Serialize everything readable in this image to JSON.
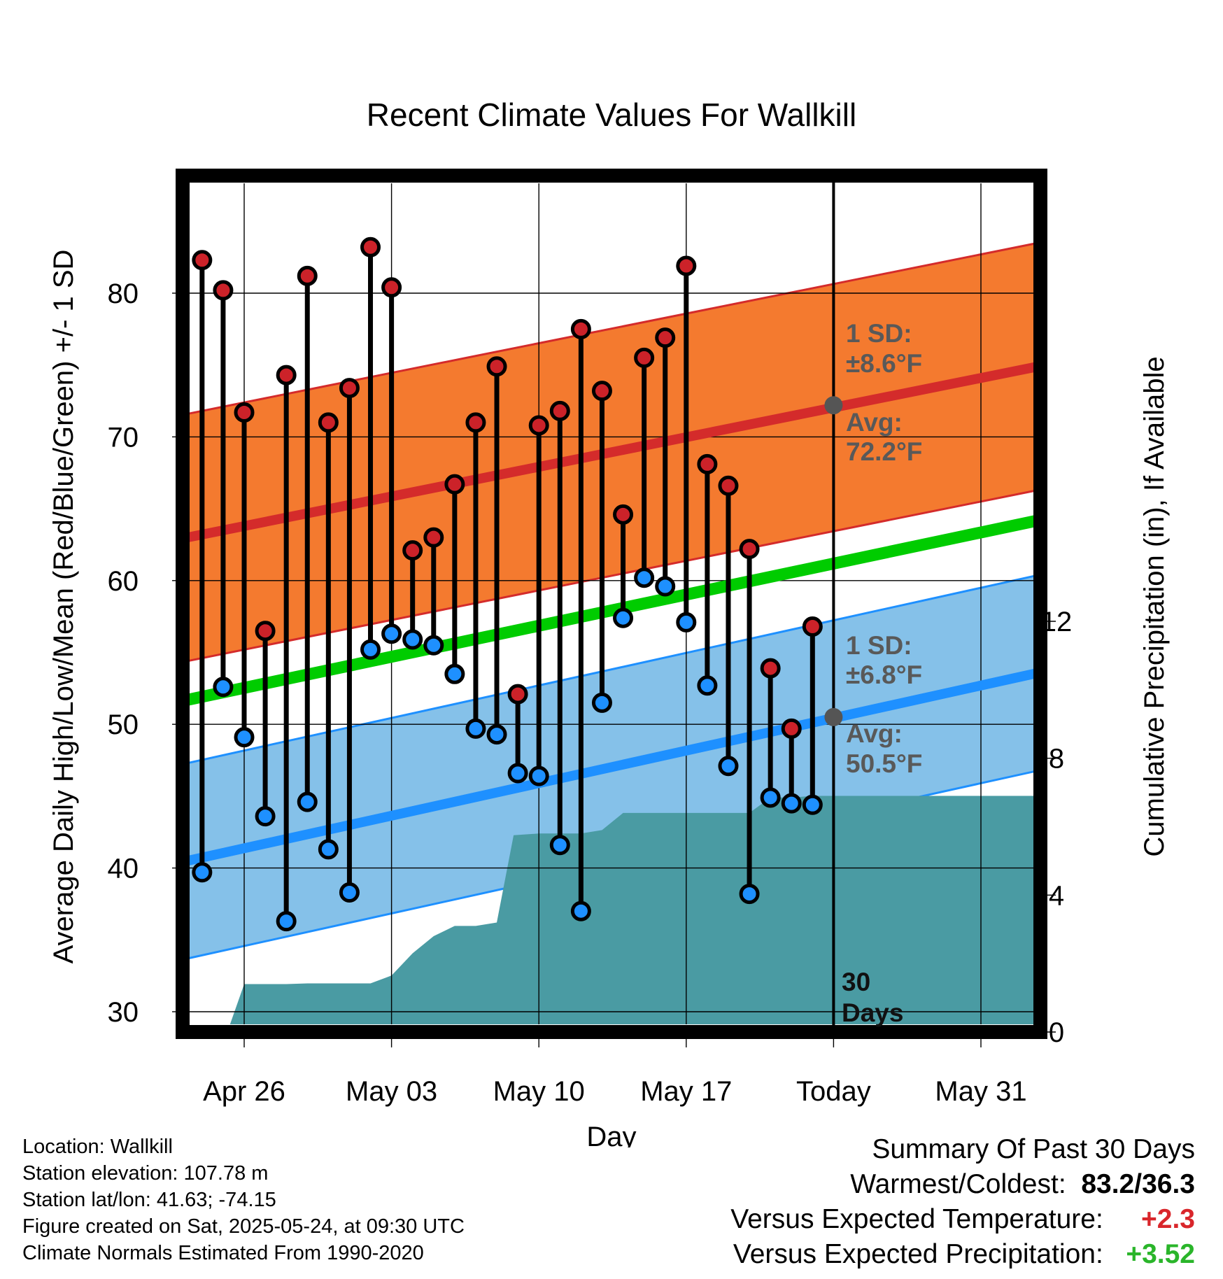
{
  "figure": {
    "title": "Recent Climate Values For Wallkill",
    "xlabel": "Day",
    "ylabel_left": "Average Daily High/Low/Mean (Red/Blue/Green) +/- 1 SD",
    "ylabel_right": "Cumulative Precipitation (in), If Available",
    "days_label": [
      "30",
      "Days"
    ],
    "high_sd_label": [
      "1 SD:",
      "±8.6°F"
    ],
    "high_avg_label": [
      "Avg:",
      "72.2°F"
    ],
    "low_sd_label": [
      "1 SD:",
      "±6.8°F"
    ],
    "low_avg_label": [
      "Avg:",
      "50.5°F"
    ]
  },
  "footer": {
    "location": "Location: Wallkill",
    "elevation": "Station elevation: 107.78 m",
    "latlon": "Station lat/lon: 41.63; -74.15",
    "created": "Figure created on Sat, 2025-05-24, at 09:30 UTC",
    "normals": "Climate Normals Estimated From 1990-2020"
  },
  "summary": {
    "heading": "Summary Of Past 30 Days",
    "warm_cold_label": "Warmest/Coldest:",
    "warm_cold_value": "83.2/36.3",
    "temp_label": "Versus Expected Temperature:",
    "temp_value": "+2.3",
    "precip_label": "Versus Expected Precipitation:",
    "precip_value": "+3.52"
  },
  "colors": {
    "high_dot": "#cc2229",
    "low_dot": "#1e90ff",
    "high_band": "#f47a2f",
    "high_mean": "#d42b2b",
    "low_band": "#85c1e9",
    "low_mean": "#1e90ff",
    "mean_line": "#00cc00",
    "precip": "#4a9ba3",
    "annotation": "#595959",
    "summary_red": "#d9262b",
    "summary_green": "#2ab52a"
  },
  "chart_data": {
    "type": "line",
    "title": "Recent Climate Values For Wallkill",
    "xlabel": "Day",
    "ylabel": "Average Daily High/Low/Mean (Red/Blue/Green) +/- 1 SD",
    "y2label": "Cumulative Precipitation (in), If Available",
    "ylim": [
      28.6,
      88
    ],
    "y_ticks": [
      30,
      40,
      50,
      60,
      70,
      80
    ],
    "y2lim": [
      0,
      25.1
    ],
    "y2_ticks": [
      0,
      4,
      8,
      12
    ],
    "xlim": [
      -3.1,
      38.4
    ],
    "x_ticks": [
      {
        "day": 0,
        "label": "Apr 26"
      },
      {
        "day": 7,
        "label": "May 03"
      },
      {
        "day": 14,
        "label": "May 10"
      },
      {
        "day": 21,
        "label": "May 17"
      },
      {
        "day": 28,
        "label": "Today"
      },
      {
        "day": 35,
        "label": "May 31"
      }
    ],
    "today_day": 28,
    "highs": [
      {
        "day": -2,
        "value": 82.3
      },
      {
        "day": -1,
        "value": 80.2
      },
      {
        "day": 0,
        "value": 71.7
      },
      {
        "day": 1,
        "value": 56.5
      },
      {
        "day": 2,
        "value": 74.3
      },
      {
        "day": 3,
        "value": 81.2
      },
      {
        "day": 4,
        "value": 71.0
      },
      {
        "day": 5,
        "value": 73.4
      },
      {
        "day": 6,
        "value": 83.2
      },
      {
        "day": 7,
        "value": 80.4
      },
      {
        "day": 8,
        "value": 62.1
      },
      {
        "day": 9,
        "value": 63.0
      },
      {
        "day": 10,
        "value": 66.7
      },
      {
        "day": 11,
        "value": 71.0
      },
      {
        "day": 12,
        "value": 74.9
      },
      {
        "day": 13,
        "value": 52.1
      },
      {
        "day": 14,
        "value": 70.8
      },
      {
        "day": 15,
        "value": 71.8
      },
      {
        "day": 16,
        "value": 77.5
      },
      {
        "day": 17,
        "value": 73.2
      },
      {
        "day": 18,
        "value": 64.6
      },
      {
        "day": 19,
        "value": 75.5
      },
      {
        "day": 20,
        "value": 76.9
      },
      {
        "day": 21,
        "value": 81.9
      },
      {
        "day": 22,
        "value": 68.1
      },
      {
        "day": 23,
        "value": 66.6
      },
      {
        "day": 24,
        "value": 62.2
      },
      {
        "day": 25,
        "value": 53.9
      },
      {
        "day": 26,
        "value": 49.7
      },
      {
        "day": 27,
        "value": 56.8
      }
    ],
    "lows": [
      {
        "day": -2,
        "value": 39.7
      },
      {
        "day": -1,
        "value": 52.6
      },
      {
        "day": 0,
        "value": 49.1
      },
      {
        "day": 1,
        "value": 43.6
      },
      {
        "day": 2,
        "value": 36.3
      },
      {
        "day": 3,
        "value": 44.6
      },
      {
        "day": 4,
        "value": 41.3
      },
      {
        "day": 5,
        "value": 38.3
      },
      {
        "day": 6,
        "value": 55.2
      },
      {
        "day": 7,
        "value": 56.3
      },
      {
        "day": 8,
        "value": 55.9
      },
      {
        "day": 9,
        "value": 55.5
      },
      {
        "day": 10,
        "value": 53.5
      },
      {
        "day": 11,
        "value": 49.7
      },
      {
        "day": 12,
        "value": 49.3
      },
      {
        "day": 13,
        "value": 46.6
      },
      {
        "day": 14,
        "value": 46.4
      },
      {
        "day": 15,
        "value": 41.6
      },
      {
        "day": 16,
        "value": 37.0
      },
      {
        "day": 17,
        "value": 51.5
      },
      {
        "day": 18,
        "value": 57.4
      },
      {
        "day": 19,
        "value": 60.2
      },
      {
        "day": 20,
        "value": 59.6
      },
      {
        "day": 21,
        "value": 57.1
      },
      {
        "day": 22,
        "value": 52.7
      },
      {
        "day": 23,
        "value": 47.1
      },
      {
        "day": 24,
        "value": 38.2
      },
      {
        "day": 25,
        "value": 44.9
      },
      {
        "day": 26,
        "value": 44.5
      },
      {
        "day": 27,
        "value": 44.4
      }
    ],
    "normal_high": {
      "day": [
        -2.7,
        38.4
      ],
      "value": [
        63.0,
        75.1
      ],
      "sd": 8.6
    },
    "normal_low": {
      "day": [
        -2.7,
        38.4
      ],
      "value": [
        40.5,
        53.8
      ],
      "sd": 6.8
    },
    "normal_mean": {
      "day": [
        -2.7,
        38.4
      ],
      "value": [
        51.7,
        64.4
      ]
    },
    "today_normals": {
      "high": 72.2,
      "low": 50.5
    },
    "precip_cumulative": [
      {
        "day": -0.8,
        "value": 0
      },
      {
        "day": 0,
        "value": 1.4
      },
      {
        "day": 1,
        "value": 1.4
      },
      {
        "day": 2,
        "value": 1.4
      },
      {
        "day": 3,
        "value": 1.42
      },
      {
        "day": 4,
        "value": 1.42
      },
      {
        "day": 5,
        "value": 1.42
      },
      {
        "day": 6,
        "value": 1.42
      },
      {
        "day": 7,
        "value": 1.65
      },
      {
        "day": 8,
        "value": 2.3
      },
      {
        "day": 9,
        "value": 2.8
      },
      {
        "day": 10,
        "value": 3.1
      },
      {
        "day": 11,
        "value": 3.1
      },
      {
        "day": 12,
        "value": 3.2
      },
      {
        "day": 12.8,
        "value": 5.75
      },
      {
        "day": 14,
        "value": 5.8
      },
      {
        "day": 15,
        "value": 5.8
      },
      {
        "day": 16,
        "value": 5.8
      },
      {
        "day": 17,
        "value": 5.9
      },
      {
        "day": 18,
        "value": 6.4
      },
      {
        "day": 19,
        "value": 6.4
      },
      {
        "day": 20,
        "value": 6.4
      },
      {
        "day": 21,
        "value": 6.4
      },
      {
        "day": 22,
        "value": 6.4
      },
      {
        "day": 23,
        "value": 6.4
      },
      {
        "day": 24,
        "value": 6.4
      },
      {
        "day": 25,
        "value": 6.85
      },
      {
        "day": 26,
        "value": 6.85
      },
      {
        "day": 27,
        "value": 6.9
      },
      {
        "day": 28,
        "value": 6.9
      },
      {
        "day": 38.4,
        "value": 6.9
      }
    ]
  }
}
